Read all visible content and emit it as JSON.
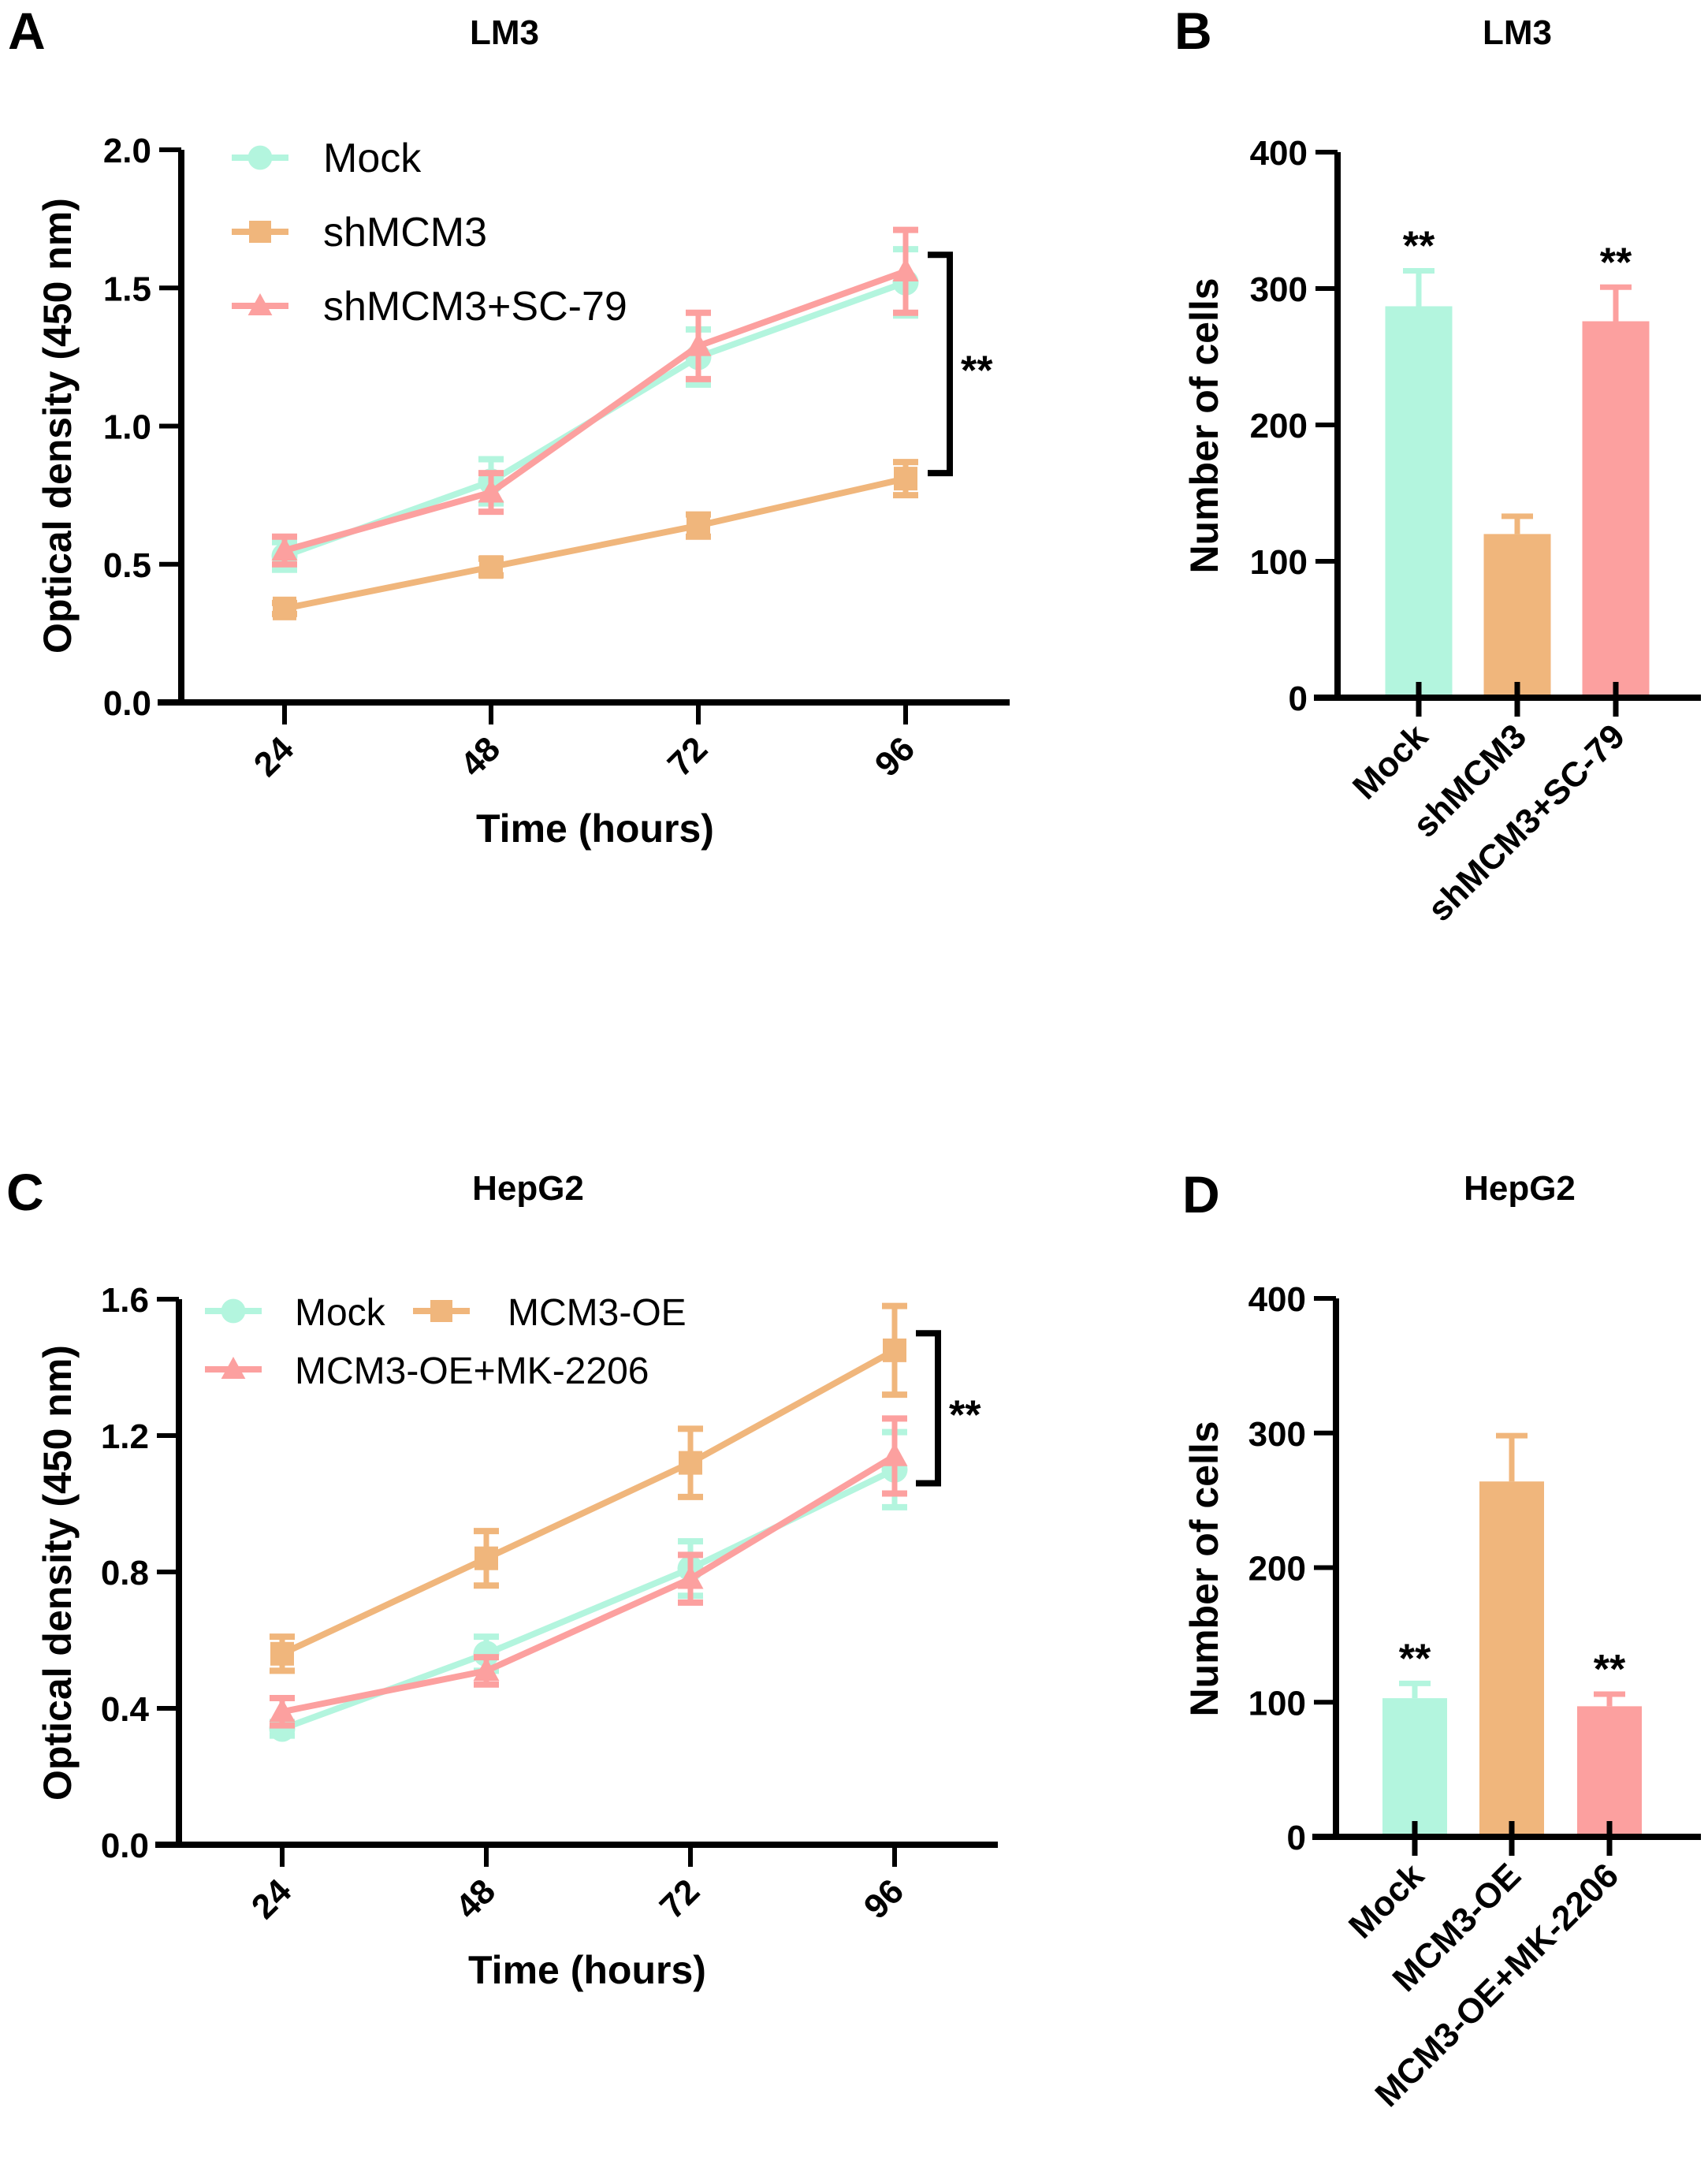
{
  "figure": {
    "panels": [
      "A",
      "B",
      "C",
      "D"
    ]
  },
  "colors": {
    "mock": "#B3F5DE",
    "orange": "#F0B67C",
    "pink": "#FCA09F",
    "axis": "#000000"
  },
  "chart_data": [
    {
      "panel": "A",
      "type": "line",
      "title": "LM3",
      "xlabel": "Time (hours)",
      "ylabel": "Optical density (450 nm)",
      "x": [
        24,
        48,
        72,
        96
      ],
      "x_tick_labels": [
        "24",
        "48",
        "72",
        "96"
      ],
      "ylim": [
        0,
        2.0
      ],
      "y_ticks": [
        0.0,
        0.5,
        1.0,
        1.5,
        2.0
      ],
      "y_tick_labels": [
        "0.0",
        "0.5",
        "1.0",
        "1.5",
        "2.0"
      ],
      "grid": false,
      "legend_position": "top-left",
      "series": [
        {
          "name": "Mock",
          "marker": "circle",
          "color": "#B3F5DE",
          "values": [
            0.53,
            0.8,
            1.25,
            1.52
          ],
          "errors": [
            0.05,
            0.08,
            0.1,
            0.12
          ]
        },
        {
          "name": "shMCM3",
          "marker": "square",
          "color": "#F0B67C",
          "values": [
            0.34,
            0.49,
            0.64,
            0.81
          ],
          "errors": [
            0.02,
            0.03,
            0.04,
            0.06
          ]
        },
        {
          "name": "shMCM3+SC-79",
          "marker": "triangle",
          "color": "#FCA09F",
          "values": [
            0.55,
            0.76,
            1.29,
            1.56
          ],
          "errors": [
            0.05,
            0.07,
            0.12,
            0.15
          ]
        }
      ],
      "annotations": [
        {
          "type": "bracket",
          "text": "**",
          "x": 96,
          "from": 1.62,
          "to": 0.83
        }
      ]
    },
    {
      "panel": "B",
      "type": "bar",
      "title": "LM3",
      "xlabel": "",
      "ylabel": "Number of cells",
      "categories": [
        "Mock",
        "shMCM3",
        "shMCM3+SC-79"
      ],
      "values": [
        287,
        120,
        276
      ],
      "errors": [
        26,
        13,
        25
      ],
      "bar_colors": [
        "#B3F5DE",
        "#F0B67C",
        "#FCA09F"
      ],
      "ylim": [
        0,
        400
      ],
      "y_ticks": [
        0,
        100,
        200,
        300,
        400
      ],
      "y_tick_labels": [
        "0",
        "100",
        "200",
        "300",
        "400"
      ],
      "grid": false,
      "significance": [
        "**",
        "",
        "**"
      ]
    },
    {
      "panel": "C",
      "type": "line",
      "title": "HepG2",
      "xlabel": "Time (hours)",
      "ylabel": "Optical density (450 nm)",
      "x": [
        24,
        48,
        72,
        96
      ],
      "x_tick_labels": [
        "24",
        "48",
        "72",
        "96"
      ],
      "ylim": [
        0,
        1.6
      ],
      "y_ticks": [
        0.0,
        0.4,
        0.8,
        1.2,
        1.6
      ],
      "y_tick_labels": [
        "0.0",
        "0.4",
        "0.8",
        "1.2",
        "1.6"
      ],
      "grid": false,
      "legend_position": "top-left",
      "series": [
        {
          "name": "Mock",
          "marker": "circle",
          "color": "#B3F5DE",
          "values": [
            0.34,
            0.56,
            0.81,
            1.1
          ],
          "errors": [
            0.02,
            0.05,
            0.08,
            0.11
          ]
        },
        {
          "name": "MCM3-OE",
          "marker": "square",
          "color": "#F0B67C",
          "values": [
            0.56,
            0.84,
            1.12,
            1.45
          ],
          "errors": [
            0.05,
            0.08,
            0.1,
            0.13
          ]
        },
        {
          "name": "MCM3-OE+MK-2206",
          "marker": "triangle",
          "color": "#FCA09F",
          "values": [
            0.39,
            0.51,
            0.78,
            1.14
          ],
          "errors": [
            0.04,
            0.04,
            0.07,
            0.11
          ]
        }
      ],
      "annotations": [
        {
          "type": "bracket",
          "text": "**",
          "x": 96,
          "from": 1.5,
          "to": 1.06
        }
      ]
    },
    {
      "panel": "D",
      "type": "bar",
      "title": "HepG2",
      "xlabel": "",
      "ylabel": "Number of cells",
      "categories": [
        "Mock",
        "MCM3-OE",
        "MCM3-OE+MK-2206"
      ],
      "values": [
        103,
        264,
        97
      ],
      "errors": [
        11,
        34,
        9
      ],
      "bar_colors": [
        "#B3F5DE",
        "#F0B67C",
        "#FCA09F"
      ],
      "ylim": [
        0,
        400
      ],
      "y_ticks": [
        0,
        100,
        200,
        300,
        400
      ],
      "y_tick_labels": [
        "0",
        "100",
        "200",
        "300",
        "400"
      ],
      "grid": false,
      "significance": [
        "**",
        "",
        "**"
      ]
    }
  ]
}
